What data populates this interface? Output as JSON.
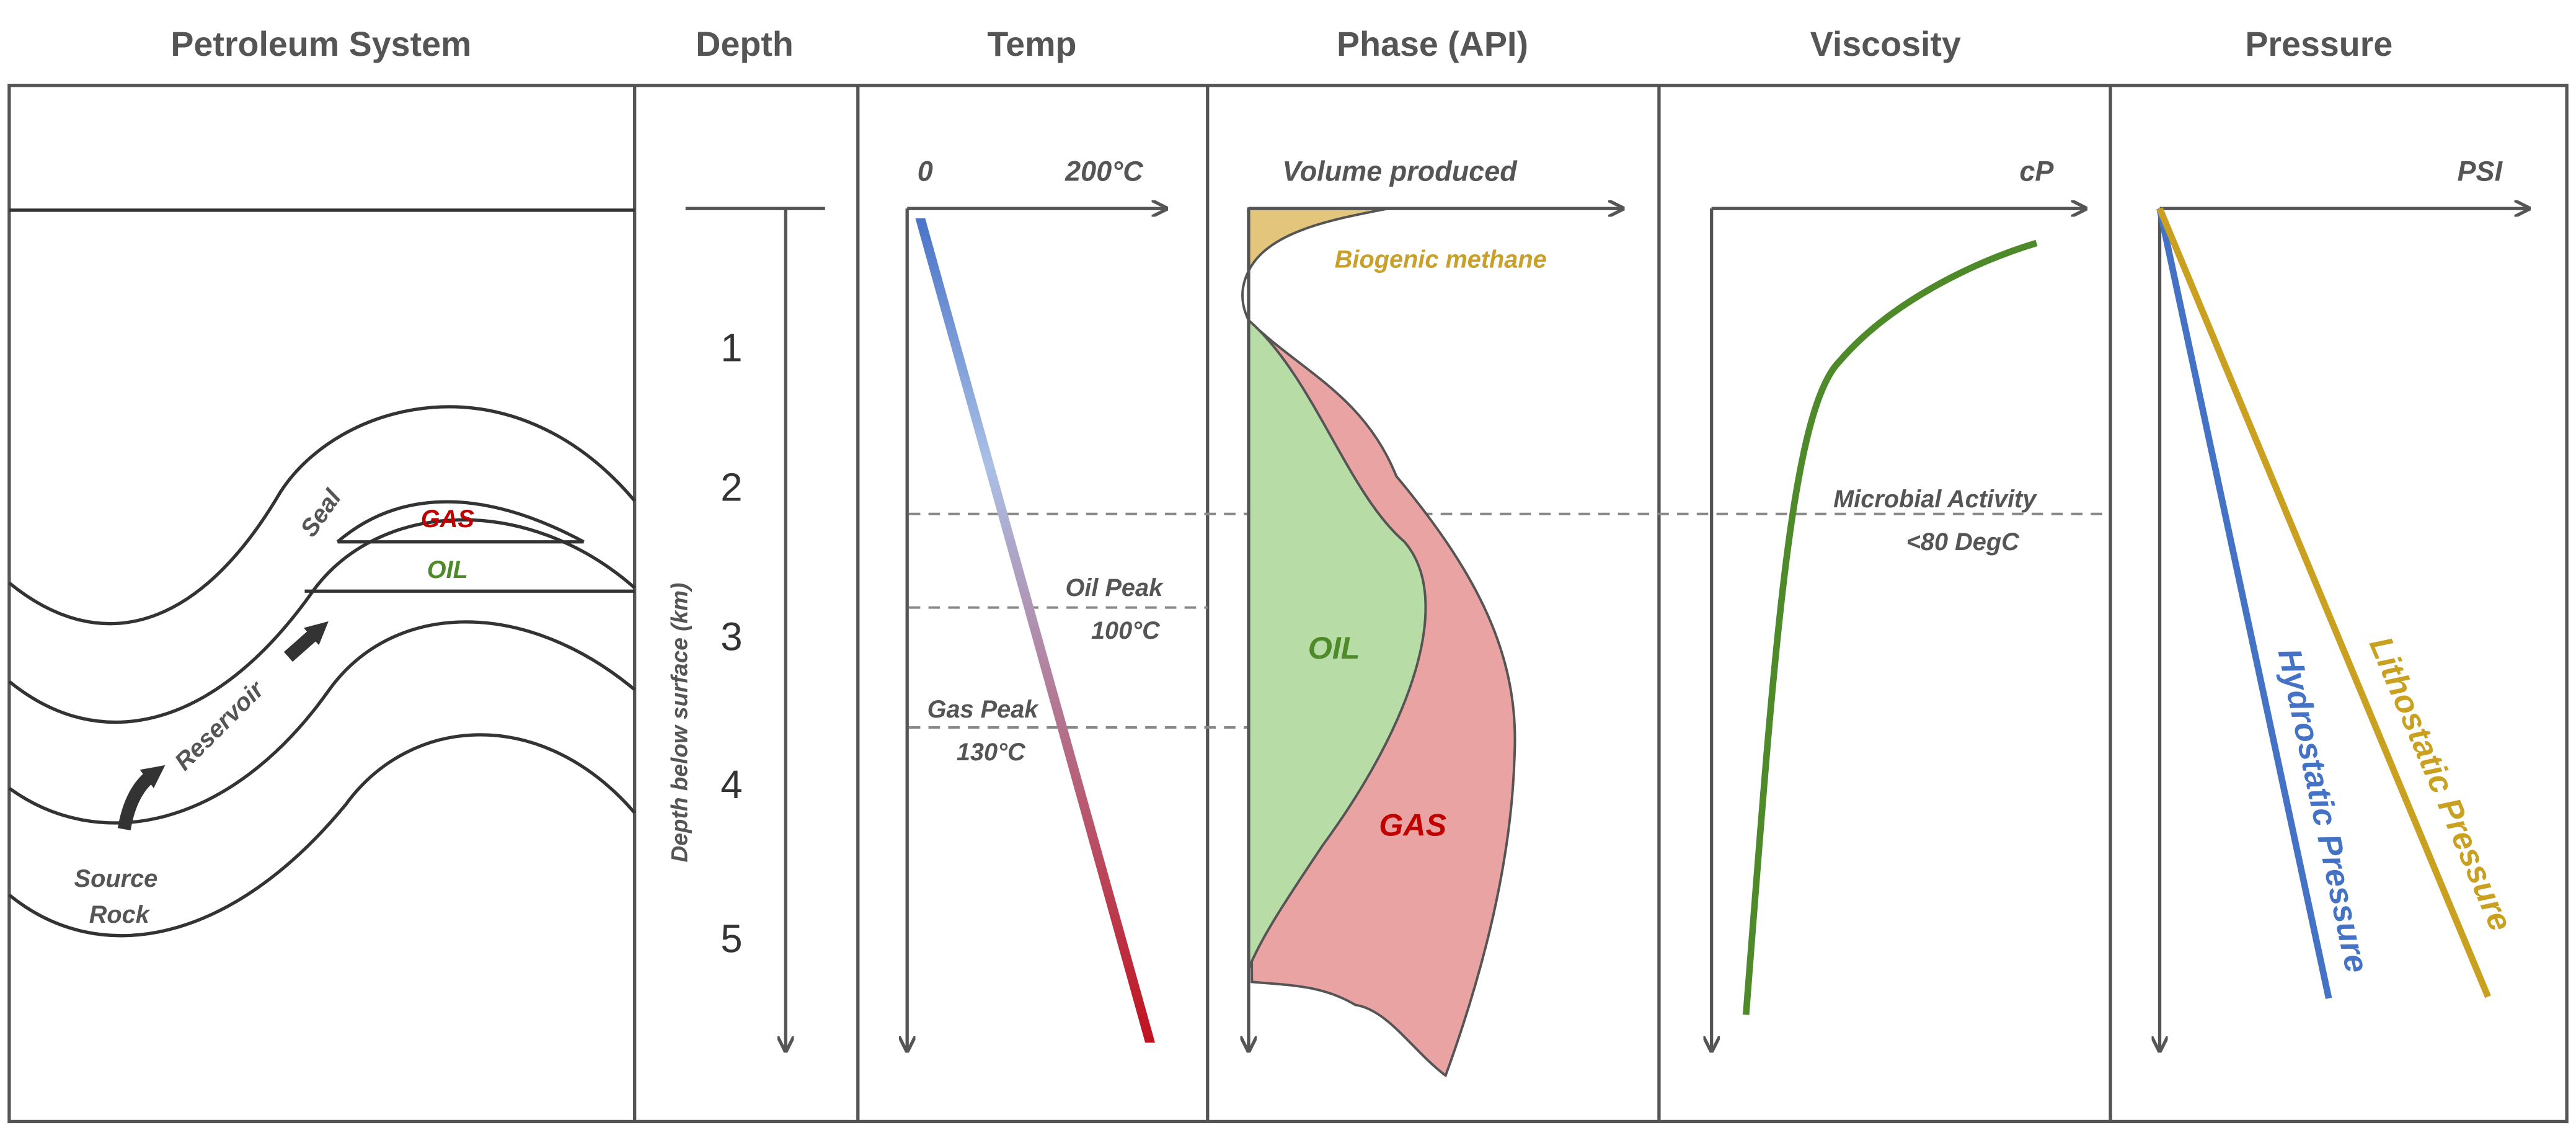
{
  "columns": [
    "Petroleum System",
    "Depth",
    "Temp",
    "Phase (API)",
    "Viscosity",
    "Pressure"
  ],
  "petroleum_system": {
    "seal": "Seal",
    "gas": "GAS",
    "oil": "OIL",
    "reservoir": "Reservoir",
    "source": [
      "Source",
      "Rock"
    ]
  },
  "depth": {
    "ticks": [
      "1",
      "2",
      "3",
      "4",
      "5"
    ],
    "axis_label": "Depth below surface (km)"
  },
  "temp": {
    "min_label": "0",
    "max_label": "200°C",
    "oil_peak": [
      "Oil Peak",
      "100°C"
    ],
    "gas_peak": [
      "Gas Peak",
      "130°C"
    ]
  },
  "phase": {
    "axis_label": "Volume produced",
    "biogenic": "Biogenic methane",
    "oil": "OIL",
    "gas": "GAS"
  },
  "viscosity": {
    "axis_label": "cP",
    "microbial": [
      "Microbial Activity",
      "<80 DegC"
    ]
  },
  "pressure": {
    "axis_label": "PSI",
    "hydrostatic": "Hydrostatic Pressure",
    "lithostatic": "Lithostatic Pressure"
  }
}
